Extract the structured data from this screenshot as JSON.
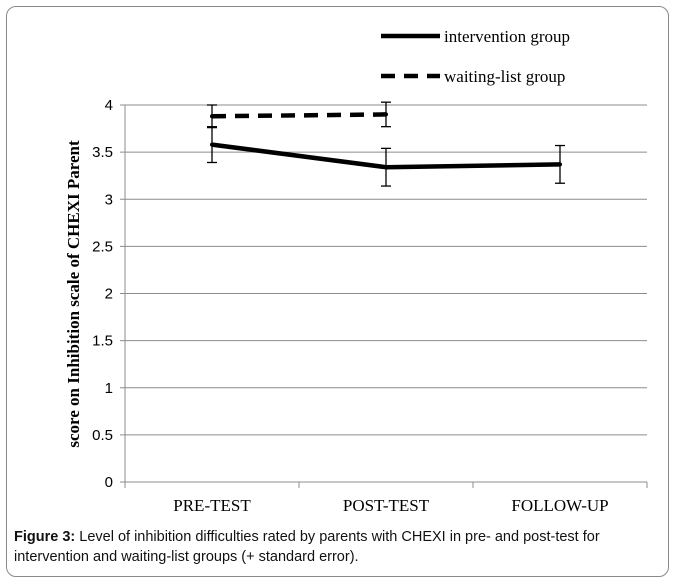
{
  "chart_data": {
    "type": "line",
    "categories": [
      "PRE-TEST",
      "POST-TEST",
      "FOLLOW-UP"
    ],
    "ylabel": "score on Inhibition scale of CHEXI Parent",
    "xlabel": "",
    "ylim": [
      0,
      4
    ],
    "yticks": [
      "0",
      "0.5",
      "1",
      "1.5",
      "2",
      "2.5",
      "3",
      "3.5",
      "4"
    ],
    "grid": true,
    "legend_position": "top-right",
    "series": [
      {
        "name": "intervention group",
        "values": [
          3.58,
          3.34,
          3.37
        ],
        "error": [
          0.19,
          0.2,
          0.2
        ],
        "style": "solid",
        "color": "#000000"
      },
      {
        "name": "waiting-list group",
        "values": [
          3.88,
          3.9,
          null
        ],
        "error": [
          0.12,
          0.13,
          null
        ],
        "style": "dashed",
        "color": "#000000"
      }
    ]
  },
  "caption": {
    "label": "Figure 3:",
    "text": " Level of inhibition difficulties rated by parents with CHEXI in pre- and post-test for intervention and waiting-list groups (+ standard error)."
  }
}
